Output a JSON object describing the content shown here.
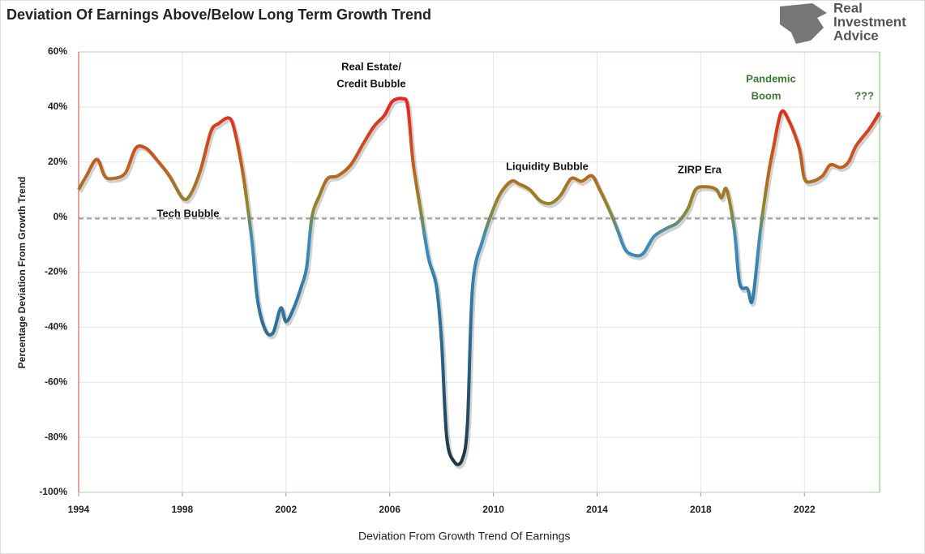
{
  "chart_data": {
    "type": "line",
    "title": "Deviation Of Earnings Above/Below Long Term Growth Trend",
    "y_label": "Percentage Deviation From Growth Trend",
    "xlim": [
      1994,
      2024.9
    ],
    "xticks": [
      1994,
      1998,
      2002,
      2006,
      2010,
      2014,
      2018,
      2022
    ],
    "ylim": [
      -100,
      60
    ],
    "yticks": [
      {
        "value": -100,
        "label": "-100%"
      },
      {
        "value": -80,
        "label": "-80%"
      },
      {
        "value": -60,
        "label": "-60%"
      },
      {
        "value": -40,
        "label": "-40%"
      },
      {
        "value": -20,
        "label": "-20%"
      },
      {
        "value": 0,
        "label": "0%"
      },
      {
        "value": 20,
        "label": "20%"
      },
      {
        "value": 40,
        "label": "40%"
      },
      {
        "value": 60,
        "label": "60%"
      }
    ],
    "grid": true,
    "reference_line": -0.5,
    "color_scale": [
      {
        "value": 40,
        "color": "#e8261c"
      },
      {
        "value": 18,
        "color": "#c0601c"
      },
      {
        "value": 3,
        "color": "#8c8a2a"
      },
      {
        "value": -8,
        "color": "#3a8fc0"
      },
      {
        "value": -45,
        "color": "#2a6a92"
      },
      {
        "value": -90,
        "color": "#1e3442"
      }
    ],
    "series": [
      {
        "name": "Deviation From Growth Trend Of Earnings",
        "x": [
          1994.0,
          1994.3,
          1994.7,
          1995.0,
          1995.3,
          1995.8,
          1996.2,
          1996.6,
          1997.0,
          1997.5,
          1998.0,
          1998.3,
          1998.7,
          1999.1,
          1999.4,
          1999.8,
          2000.0,
          2000.3,
          2000.5,
          2000.7,
          2000.9,
          2001.2,
          2001.5,
          2001.8,
          2002.0,
          2002.3,
          2002.6,
          2002.8,
          2003.0,
          2003.3,
          2003.6,
          2004.0,
          2004.5,
          2005.0,
          2005.4,
          2005.8,
          2006.1,
          2006.5,
          2006.7,
          2006.9,
          2007.2,
          2007.5,
          2007.8,
          2008.0,
          2008.2,
          2008.5,
          2008.8,
          2009.0,
          2009.2,
          2009.6,
          2010.0,
          2010.3,
          2010.7,
          2011.0,
          2011.4,
          2011.8,
          2012.2,
          2012.6,
          2013.0,
          2013.4,
          2013.8,
          2014.1,
          2014.5,
          2014.8,
          2015.1,
          2015.5,
          2015.8,
          2016.2,
          2016.7,
          2017.1,
          2017.5,
          2017.8,
          2018.2,
          2018.6,
          2018.8,
          2019.0,
          2019.3,
          2019.5,
          2019.8,
          2020.0,
          2020.3,
          2020.6,
          2020.8,
          2021.1,
          2021.4,
          2021.8,
          2022.0,
          2022.3,
          2022.7,
          2023.0,
          2023.4,
          2023.7,
          2024.0,
          2024.5,
          2024.9
        ],
        "values": [
          10,
          15,
          21,
          15,
          14,
          16,
          25,
          25,
          21,
          15,
          7,
          8,
          17,
          31,
          34,
          36,
          32,
          18,
          5,
          -10,
          -30,
          -41,
          -42,
          -33,
          -38,
          -33,
          -25,
          -18,
          0,
          8,
          14,
          15,
          19,
          27,
          33,
          37,
          42,
          43,
          40,
          20,
          2,
          -15,
          -25,
          -45,
          -80,
          -89,
          -88,
          -75,
          -25,
          -8,
          3,
          9,
          13,
          12,
          10,
          6,
          5,
          8,
          14,
          13,
          15,
          10,
          2,
          -5,
          -12,
          -14,
          -13,
          -7,
          -4,
          -2,
          3,
          10,
          11,
          10,
          7,
          10,
          -5,
          -24,
          -26,
          -30,
          -5,
          15,
          25,
          38,
          35,
          25,
          14,
          13,
          15,
          19,
          18,
          20,
          26,
          32,
          38
        ]
      }
    ],
    "annotations": [
      {
        "text": "Tech Bubble",
        "color": "#111111"
      },
      {
        "text": "Real Estate/",
        "color": "#111111"
      },
      {
        "text": "Credit Bubble",
        "color": "#111111"
      },
      {
        "text": "Liquidity Bubble",
        "color": "#111111"
      },
      {
        "text": "ZIRP Era",
        "color": "#111111"
      },
      {
        "text": "Pandemic",
        "color": "#3a7a32"
      },
      {
        "text": "Boom",
        "color": "#3a7a32"
      },
      {
        "text": "???",
        "color": "#3a7a32"
      }
    ]
  },
  "logo": [
    "Real",
    "Investment",
    "Advice"
  ]
}
